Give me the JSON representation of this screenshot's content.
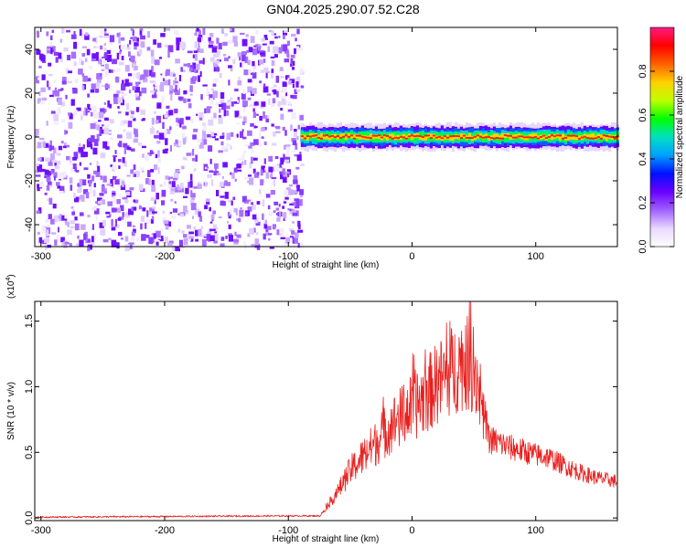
{
  "title": "GN04.2025.290.07.52.C28",
  "chart_data": [
    {
      "type": "heatmap",
      "name": "spectrogram",
      "xlabel": "Height of straight line (km)",
      "ylabel": "Frequency (Hz)",
      "xlim": [
        -305,
        166
      ],
      "ylim": [
        -50,
        50
      ],
      "xticks": [
        -300,
        -200,
        -100,
        0,
        100
      ],
      "yticks": [
        -40,
        -20,
        0,
        20,
        40
      ],
      "noise_region_x": [
        -305,
        -90
      ],
      "signal_band": {
        "x_start": -90,
        "x_end": 166,
        "freq_center": 0,
        "freq_halfwidth": 4
      },
      "colorbar": {
        "label": "Normalized spectral amplitude",
        "range": [
          0,
          1
        ],
        "ticks": [
          0.0,
          0.2,
          0.4,
          0.6,
          0.8
        ],
        "tick_labels": [
          "0.0",
          "0.2",
          "0.4",
          "0.6",
          "0.8"
        ],
        "colors": [
          "#ffffff",
          "#e8d8ff",
          "#a060ff",
          "#6a00ff",
          "#0010ff",
          "#00a0ff",
          "#00e0c0",
          "#00ff00",
          "#c0ff00",
          "#ffd000",
          "#ff6000",
          "#ff0000",
          "#ff1a80"
        ]
      }
    },
    {
      "type": "line",
      "name": "snr",
      "xlabel": "Height of straight line (km)",
      "ylabel": "SNR (10 * v/v)",
      "y_multiplier_label": "(x10",
      "y_multiplier_exp": "4",
      "xlim": [
        -305,
        166
      ],
      "ylim": [
        -0.02,
        1.65
      ],
      "xticks": [
        -300,
        -200,
        -100,
        0,
        100
      ],
      "yticks": [
        0.0,
        0.5,
        1.0,
        1.5
      ],
      "ytick_labels": [
        "0.0",
        "0.5",
        "1.0",
        "1.5"
      ],
      "color": "#e8201e",
      "envelope": {
        "x": [
          -305,
          -100,
          -75,
          -60,
          -50,
          -40,
          -30,
          -20,
          -10,
          0,
          10,
          20,
          30,
          40,
          50,
          55,
          58,
          62,
          70,
          80,
          90,
          100,
          110,
          120,
          130,
          140,
          150,
          166
        ],
        "y": [
          0.0,
          0.01,
          0.01,
          0.25,
          0.45,
          0.58,
          0.7,
          0.85,
          0.95,
          1.05,
          1.15,
          1.28,
          1.38,
          1.48,
          1.45,
          1.2,
          0.9,
          0.65,
          0.62,
          0.58,
          0.55,
          0.52,
          0.5,
          0.45,
          0.4,
          0.36,
          0.33,
          0.3
        ]
      }
    }
  ]
}
